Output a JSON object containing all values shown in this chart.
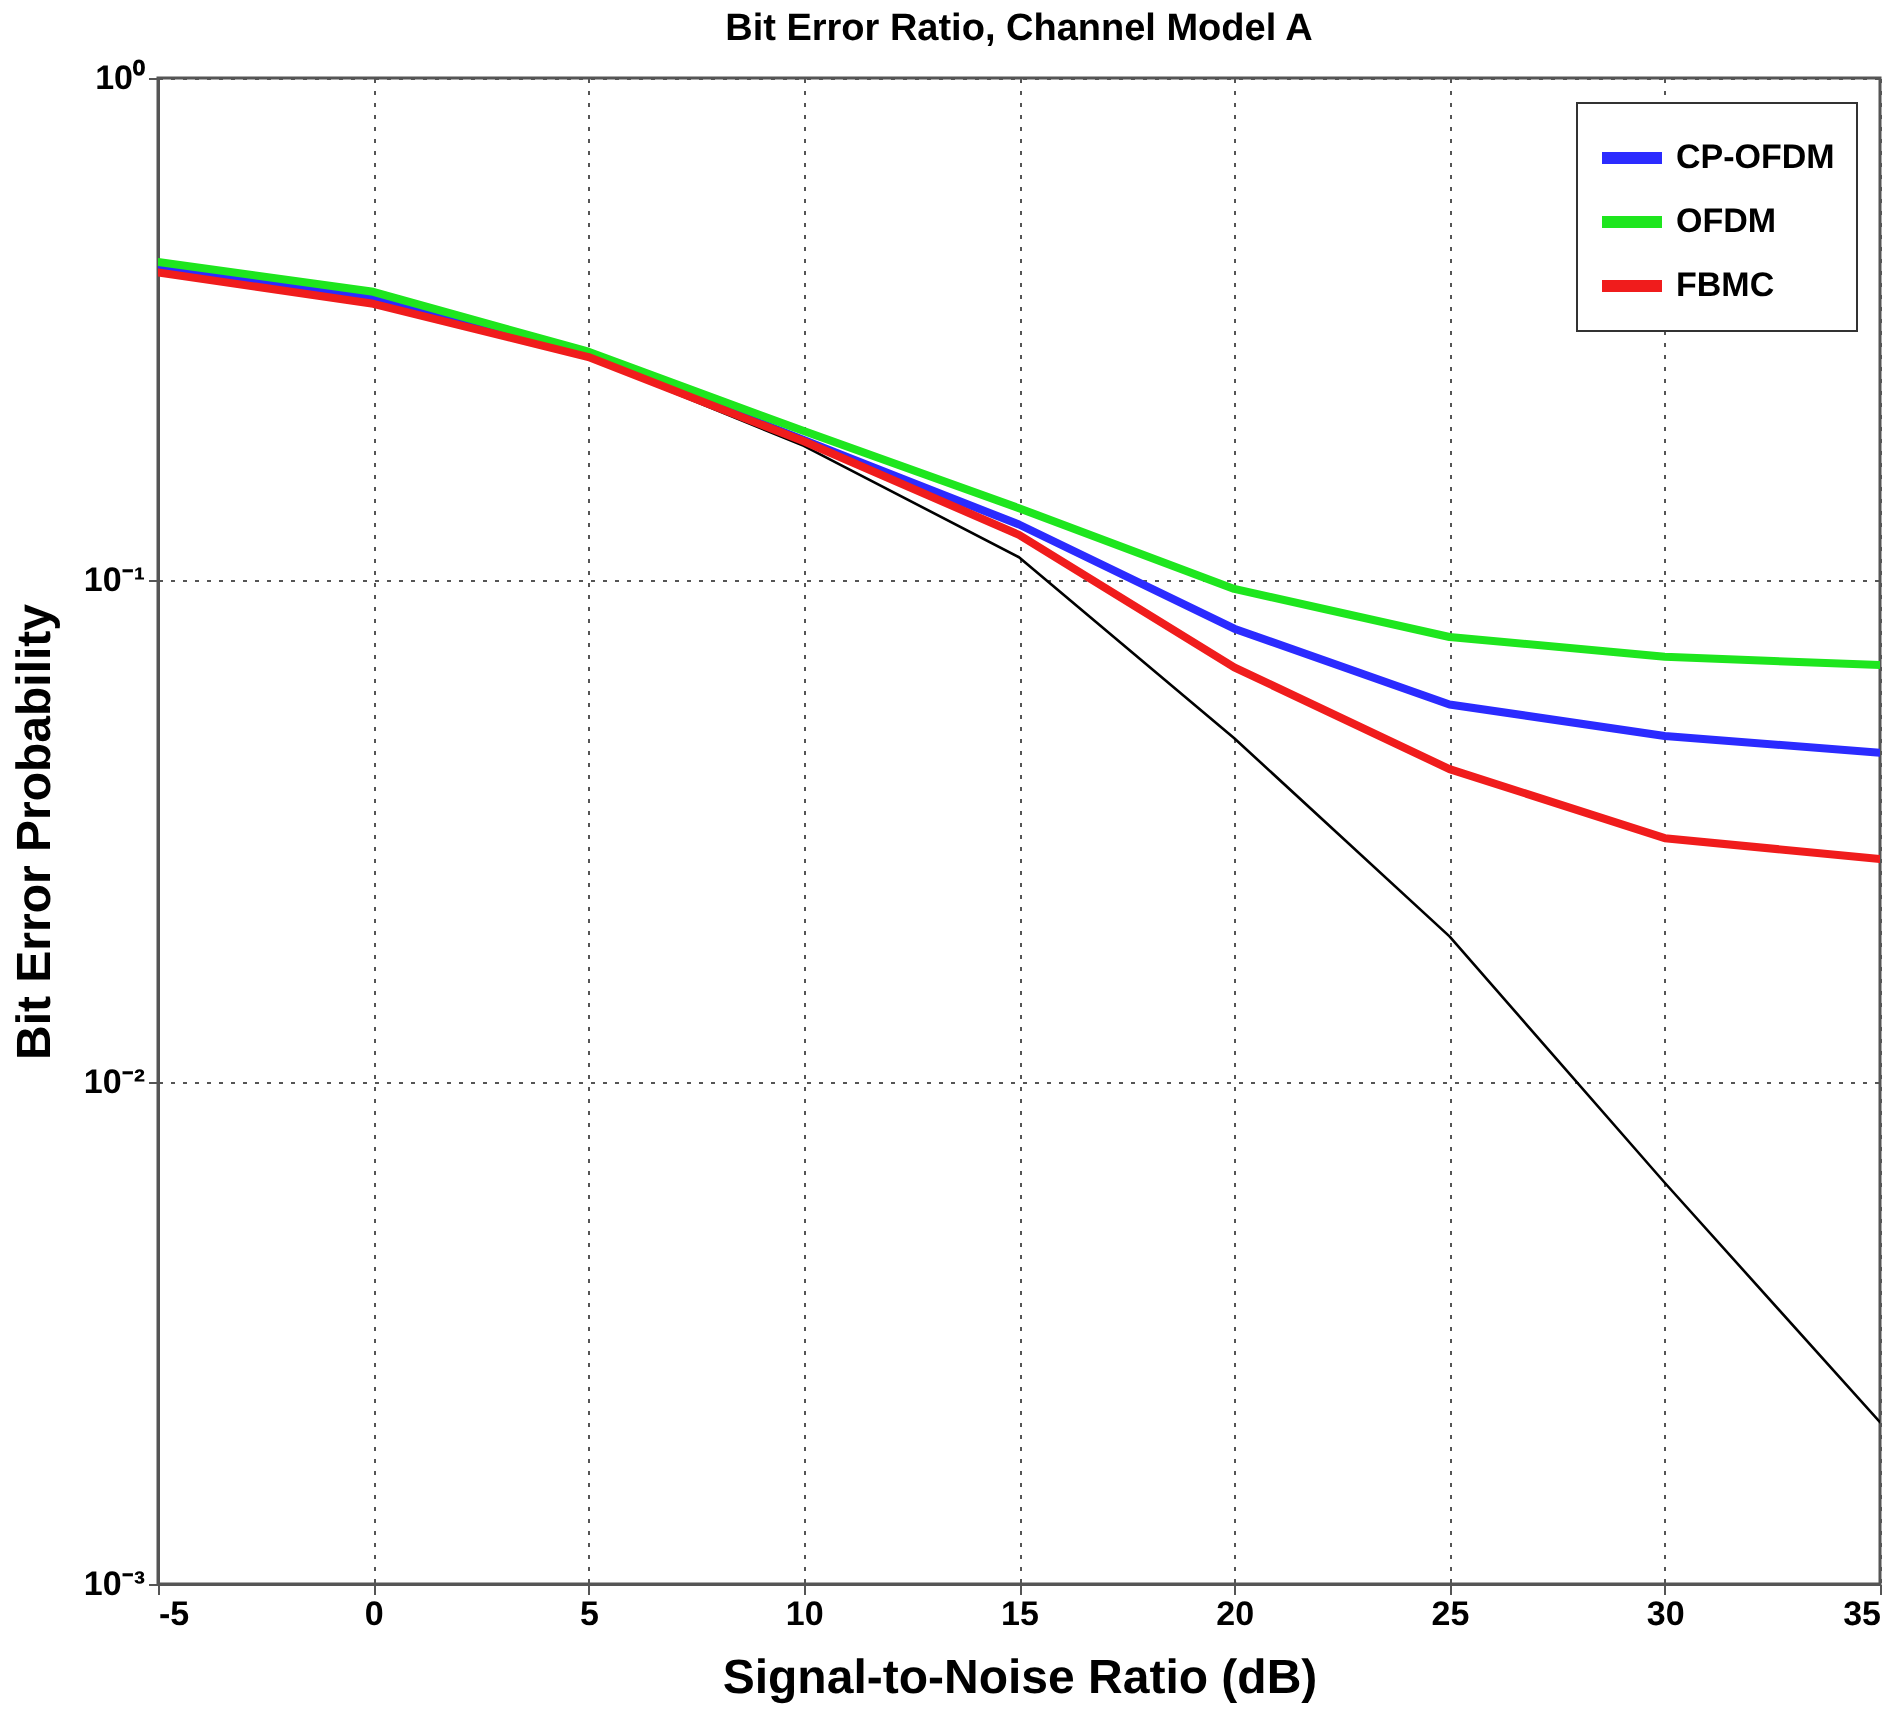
{
  "chart_data": {
    "type": "line",
    "title": "Bit  Error Ratio, Channel Model A",
    "xlabel": "Signal-to-Noise Ratio (dB)",
    "ylabel": "Bit Error Probability",
    "x": [
      -5,
      0,
      5,
      10,
      15,
      20,
      25,
      30,
      35
    ],
    "series": [
      {
        "name": "CP-OFDM",
        "color": "#2b2bff",
        "values": [
          0.42,
          0.365,
          0.28,
          0.19,
          0.129,
          0.08,
          0.0565,
          0.0489,
          0.0453
        ]
      },
      {
        "name": "OFDM",
        "color": "#1ee61e",
        "values": [
          0.43,
          0.375,
          0.285,
          0.198,
          0.139,
          0.096,
          0.077,
          0.0703,
          0.0677
        ]
      },
      {
        "name": "FBMC",
        "color": "#f01c1c",
        "values": [
          0.41,
          0.355,
          0.278,
          0.189,
          0.123,
          0.067,
          0.042,
          0.0306,
          0.0278
        ]
      },
      {
        "color": "#000000",
        "values": [
          0.41,
          0.355,
          0.277,
          0.185,
          0.111,
          0.0484,
          0.0195,
          0.0063,
          0.0021
        ]
      }
    ],
    "xlim": [
      -5,
      35
    ],
    "xticks": [
      -5,
      0,
      5,
      10,
      15,
      20,
      25,
      30,
      35
    ],
    "ylim": [
      0.001,
      1
    ],
    "yticks": [
      {
        "value": 0.001,
        "label": "10⁻³"
      },
      {
        "value": 0.01,
        "label": "10⁻²"
      },
      {
        "value": 0.1,
        "label": "10⁻¹"
      },
      {
        "value": 1,
        "label": "10⁰"
      }
    ],
    "log": true,
    "grid": true,
    "legend": "top right",
    "marker": "none",
    "line_style": "solid"
  }
}
